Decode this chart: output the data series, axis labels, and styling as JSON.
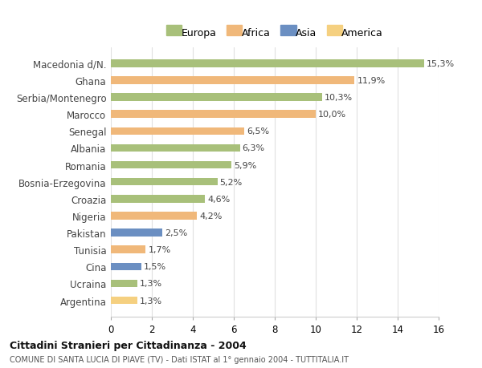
{
  "categories": [
    "Macedonia d/N.",
    "Ghana",
    "Serbia/Montenegro",
    "Marocco",
    "Senegal",
    "Albania",
    "Romania",
    "Bosnia-Erzegovina",
    "Croazia",
    "Nigeria",
    "Pakistan",
    "Tunisia",
    "Cina",
    "Ucraina",
    "Argentina"
  ],
  "values": [
    15.3,
    11.9,
    10.3,
    10.0,
    6.5,
    6.3,
    5.9,
    5.2,
    4.6,
    4.2,
    2.5,
    1.7,
    1.5,
    1.3,
    1.3
  ],
  "labels": [
    "15,3%",
    "11,9%",
    "10,3%",
    "10,0%",
    "6,5%",
    "6,3%",
    "5,9%",
    "5,2%",
    "4,6%",
    "4,2%",
    "2,5%",
    "1,7%",
    "1,5%",
    "1,3%",
    "1,3%"
  ],
  "colors": [
    "#a8c07a",
    "#f0b87a",
    "#a8c07a",
    "#f0b87a",
    "#f0b87a",
    "#a8c07a",
    "#a8c07a",
    "#a8c07a",
    "#a8c07a",
    "#f0b87a",
    "#6b8fc2",
    "#f0b87a",
    "#6b8fc2",
    "#a8c07a",
    "#f5d080"
  ],
  "continent": [
    "Europa",
    "Africa",
    "Europa",
    "Africa",
    "Africa",
    "Europa",
    "Europa",
    "Europa",
    "Europa",
    "Africa",
    "Asia",
    "Africa",
    "Asia",
    "Europa",
    "America"
  ],
  "legend_labels": [
    "Europa",
    "Africa",
    "Asia",
    "America"
  ],
  "legend_colors": [
    "#a8c07a",
    "#f0b87a",
    "#6b8fc2",
    "#f5d080"
  ],
  "title1": "Cittadini Stranieri per Cittadinanza - 2004",
  "title2": "COMUNE DI SANTA LUCIA DI PIAVE (TV) - Dati ISTAT al 1° gennaio 2004 - TUTTITALIA.IT",
  "xlim": [
    0,
    16
  ],
  "xticks": [
    0,
    2,
    4,
    6,
    8,
    10,
    12,
    14,
    16
  ],
  "bg_color": "#ffffff",
  "grid_color": "#e0e0e0",
  "bar_height": 0.45,
  "label_fontsize": 8.0,
  "ytick_fontsize": 8.5,
  "xtick_fontsize": 8.5
}
